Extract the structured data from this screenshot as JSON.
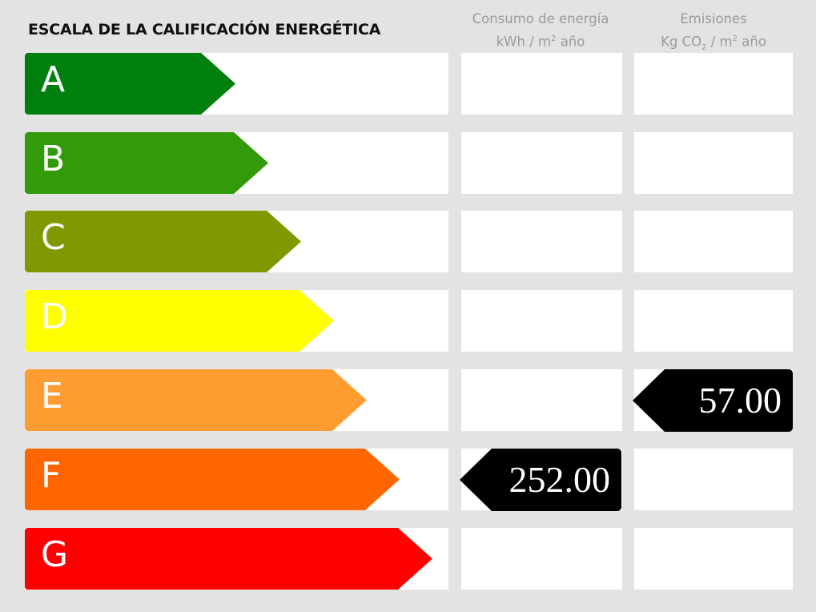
{
  "title": "ESCALA DE LA CALIFICACIÓN ENERGÉTICA",
  "columns": {
    "consumo": {
      "line1": "Consumo de energía",
      "unit_pre": "kWh / m",
      "unit_sup": "2",
      "unit_post": " año"
    },
    "emisiones": {
      "line1": "Emisiones",
      "unit_pre": "Kg CO",
      "unit_sub": "2",
      "unit_mid": " / m",
      "unit_sup": "2",
      "unit_post": " año"
    }
  },
  "ratings": [
    {
      "letter": "A",
      "color": "#007f0e"
    },
    {
      "letter": "B",
      "color": "#339a0a"
    },
    {
      "letter": "C",
      "color": "#7f9a00"
    },
    {
      "letter": "D",
      "color": "#ffff00"
    },
    {
      "letter": "E",
      "color": "#ff9d33"
    },
    {
      "letter": "F",
      "color": "#ff6600"
    },
    {
      "letter": "G",
      "color": "#ff0000"
    }
  ],
  "consumo_value": {
    "rating": "F",
    "value": "252.00"
  },
  "emisiones_value": {
    "rating": "E",
    "value": "57.00"
  }
}
